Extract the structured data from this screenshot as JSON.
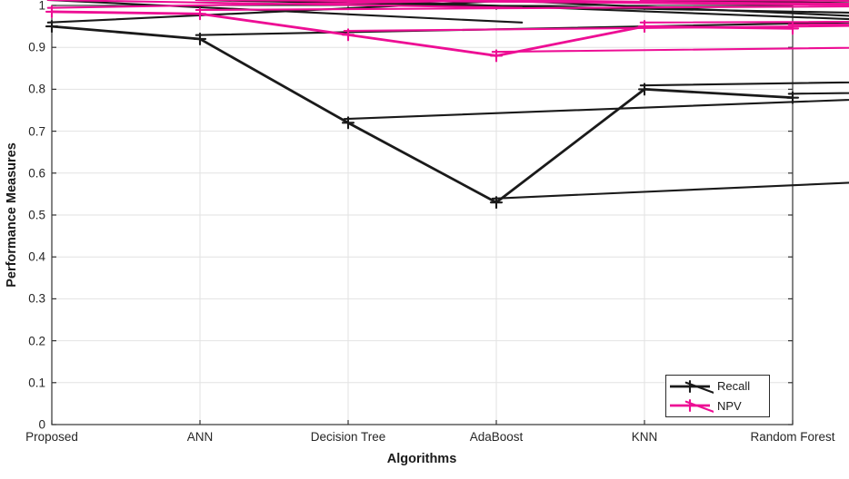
{
  "chart_data": {
    "type": "line",
    "title": "",
    "xlabel": "Algorithms",
    "ylabel": "Performance Measures",
    "categories": [
      "Proposed",
      "ANN",
      "Decision Tree",
      "AdaBoost",
      "KNN",
      "Random Forest"
    ],
    "series": [
      {
        "name": "Recall",
        "color": "#1a1a1a",
        "values": [
          0.95,
          0.92,
          0.72,
          0.53,
          0.8,
          0.78
        ]
      },
      {
        "name": "NPV",
        "color": "#ed0e94",
        "values": [
          0.985,
          0.98,
          0.93,
          0.88,
          0.95,
          0.945
        ]
      }
    ],
    "ylim": [
      0,
      1
    ],
    "yticks": [
      "0",
      "0.1",
      "0.2",
      "0.3",
      "0.4",
      "0.5",
      "0.6",
      "0.7",
      "0.8",
      "0.9",
      "1"
    ],
    "grid": true,
    "marker": "asterisk",
    "legend_position": "bottom-right",
    "style": {
      "grid_color": "#e2e2e2",
      "axis_color": "#333333",
      "tick_text_color": "#262626",
      "background": "#ffffff"
    }
  }
}
